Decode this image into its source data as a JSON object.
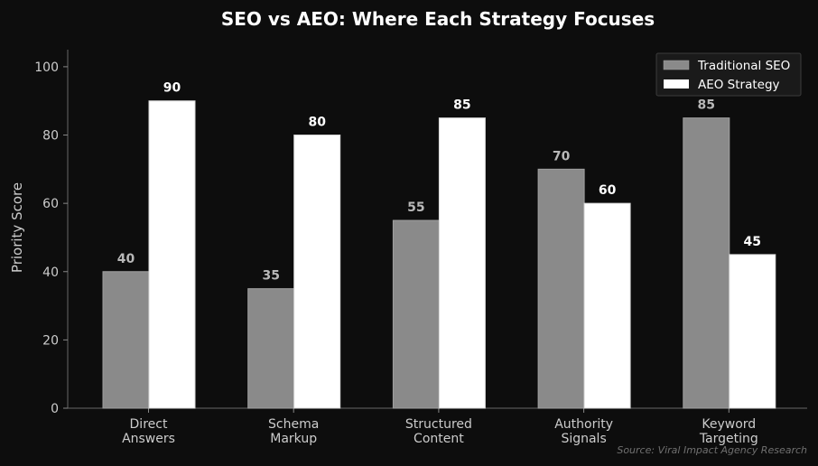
{
  "chart_data": {
    "type": "bar",
    "title": "SEO vs AEO: Where Each Strategy Focuses",
    "xlabel": "",
    "ylabel": "Priority Score",
    "ylim": [
      0,
      105
    ],
    "yticks": [
      "0",
      "20",
      "40",
      "60",
      "80",
      "100"
    ],
    "categories": [
      [
        "Direct",
        "Answers"
      ],
      [
        "Schema",
        "Markup"
      ],
      [
        "Structured",
        "Content"
      ],
      [
        "Authority",
        "Signals"
      ],
      [
        "Keyword",
        "Targeting"
      ]
    ],
    "series": [
      {
        "name": "Traditional SEO",
        "values": [
          40,
          35,
          55,
          70,
          85
        ],
        "color": "#8a8a8a",
        "label_color": "#b8b8b8"
      },
      {
        "name": "AEO Strategy",
        "values": [
          90,
          80,
          85,
          60,
          45
        ],
        "color": "#ffffff",
        "label_color": "#ffffff"
      }
    ],
    "legend_position": "top-right",
    "grid": false,
    "source": "Source: Viral Impact Agency Research"
  }
}
